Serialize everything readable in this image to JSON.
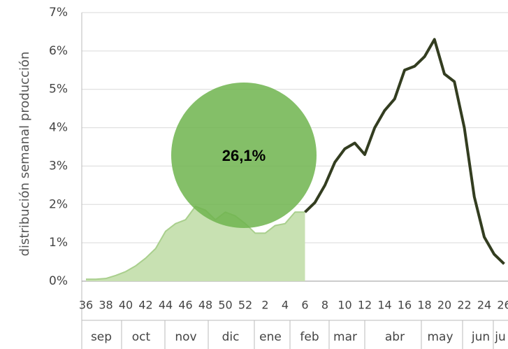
{
  "chart_data": {
    "type": "line",
    "y_axis_label": "distribución semanal producción",
    "annotation": "26,1%",
    "categories": [
      36,
      null,
      38,
      null,
      40,
      null,
      42,
      null,
      44,
      null,
      46,
      null,
      48,
      null,
      50,
      null,
      52,
      null,
      2,
      null,
      4,
      null,
      6,
      null,
      8,
      null,
      10,
      null,
      12,
      null,
      14,
      null,
      16,
      null,
      18,
      null,
      20,
      null,
      22,
      null,
      24,
      null,
      26
    ],
    "months": [
      "sep",
      "oct",
      "nov",
      "dic",
      "ene",
      "feb",
      "mar",
      "abr",
      "may",
      "jun",
      "ju"
    ],
    "series": [
      {
        "name": "area",
        "color": "#a9cf8d",
        "fill": "#c8e1b2",
        "values": [
          0.05,
          0.05,
          0.07,
          0.15,
          0.25,
          0.4,
          0.6,
          0.85,
          1.3,
          1.5,
          1.6,
          1.95,
          1.85,
          1.6,
          1.8,
          1.7,
          1.5,
          1.25,
          1.25,
          1.45,
          1.5,
          1.8,
          1.8,
          null,
          null,
          null,
          null,
          null,
          null,
          null,
          null,
          null,
          null,
          null,
          null,
          null,
          null,
          null,
          null,
          null,
          null,
          null,
          null
        ]
      },
      {
        "name": "line",
        "color": "#333d20",
        "values": [
          null,
          null,
          null,
          null,
          null,
          null,
          null,
          null,
          null,
          null,
          null,
          null,
          null,
          null,
          null,
          null,
          null,
          null,
          null,
          null,
          null,
          null,
          1.8,
          2.05,
          2.5,
          3.1,
          3.45,
          3.6,
          3.3,
          4.0,
          4.45,
          4.75,
          5.5,
          5.6,
          5.85,
          6.3,
          5.4,
          5.2,
          4.0,
          2.2,
          1.15,
          0.7,
          0.45
        ]
      }
    ],
    "ylim": [
      0,
      7
    ],
    "yticks": [
      {
        "value": 0,
        "label": "0%"
      },
      {
        "value": 1,
        "label": "1%"
      },
      {
        "value": 2,
        "label": "2%"
      },
      {
        "value": 3,
        "label": "3%"
      },
      {
        "value": 4,
        "label": "4%"
      },
      {
        "value": 5,
        "label": "5%"
      },
      {
        "value": 6,
        "label": "6%"
      },
      {
        "value": 7,
        "label": "7%"
      }
    ],
    "grid": true,
    "annotation_color": "#6fb44e"
  }
}
